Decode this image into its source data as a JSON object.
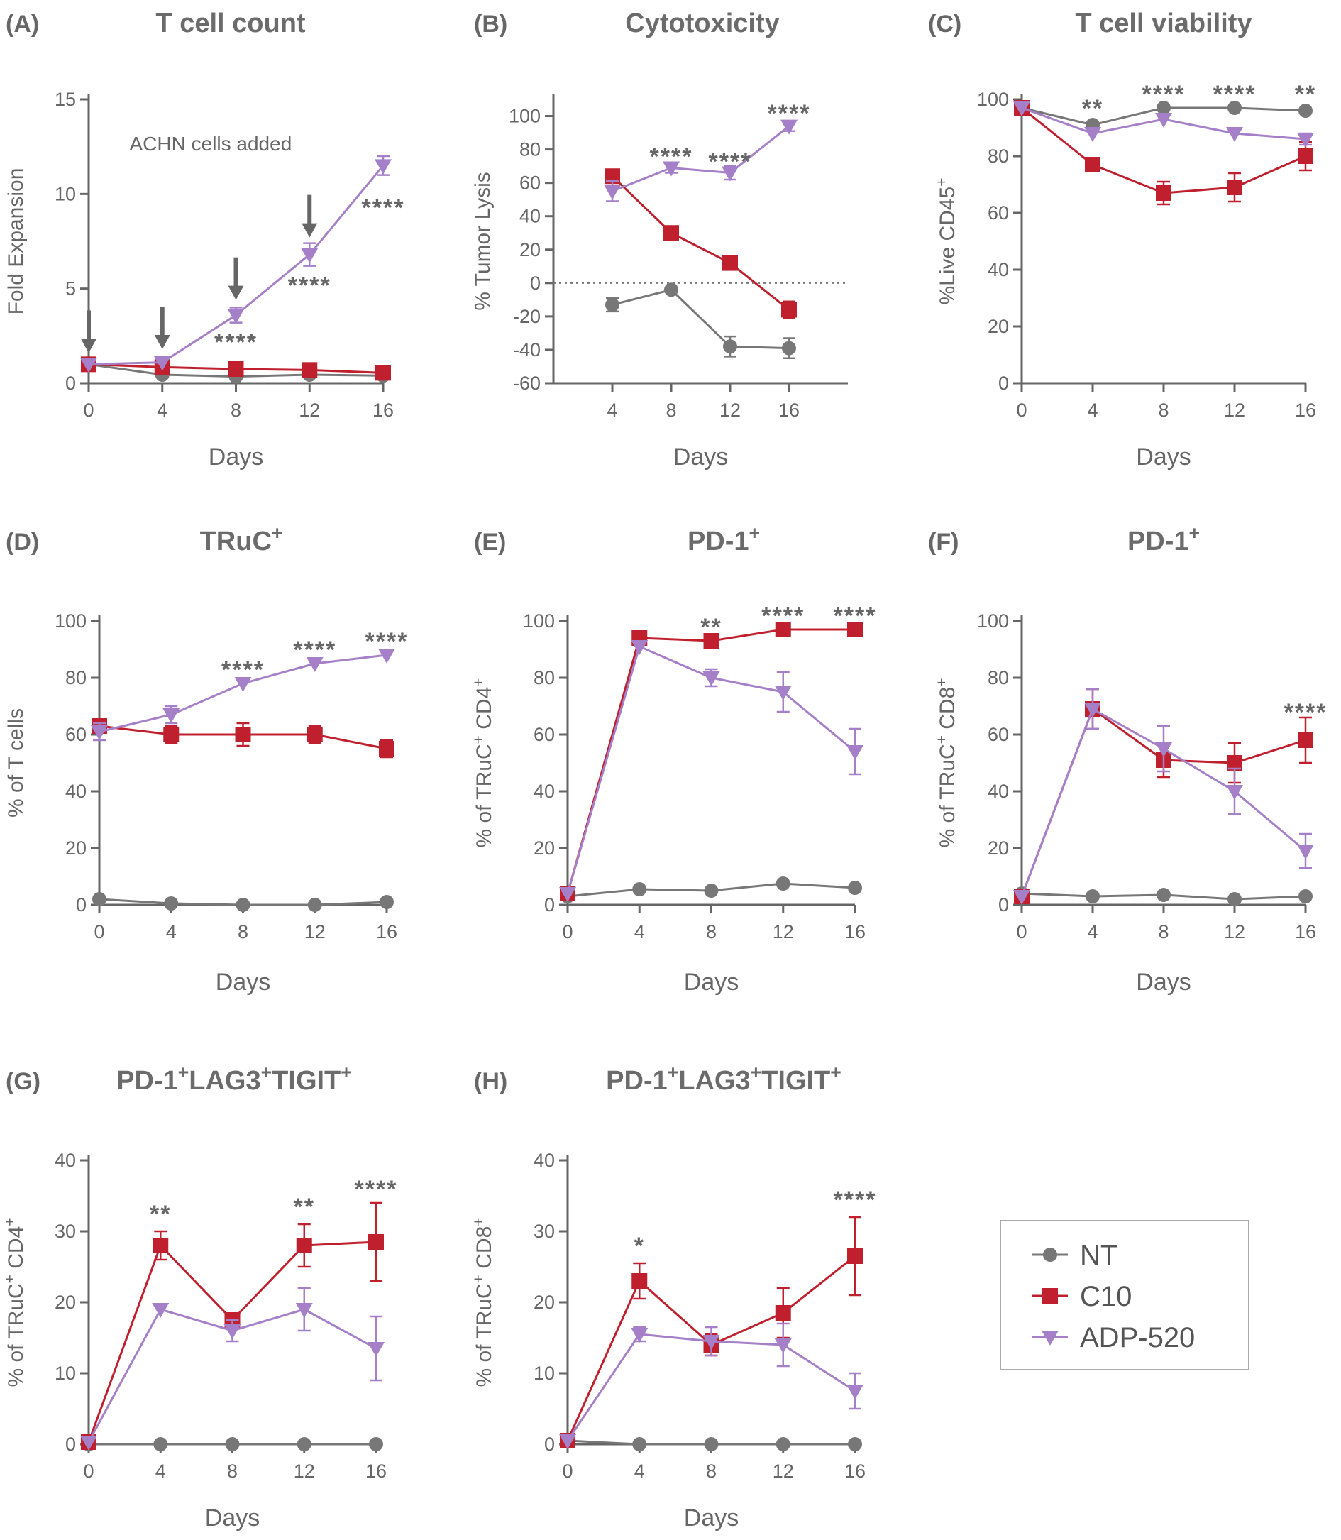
{
  "colors": {
    "NT": "#777777",
    "C10": "#c0202e",
    "ADP-520": "#a57fc8",
    "axis": "#666666"
  },
  "legend": {
    "items": [
      "NT",
      "C10",
      "ADP-520"
    ],
    "position": "bottom-right"
  },
  "chart_data": [
    {
      "letter": "(A)",
      "title": "T cell count",
      "titleSup": "",
      "type": "line",
      "xlabel": "Days",
      "ylabel": "Fold Expansion",
      "ylabelSup": "",
      "xticks": [
        0,
        4,
        8,
        12,
        16
      ],
      "yticks": [
        0,
        5,
        10,
        15
      ],
      "ylim": [
        0,
        15
      ],
      "annotation": {
        "text": "ACHN cells added",
        "arrows_at_days": [
          0,
          4,
          8,
          12
        ]
      },
      "series": [
        {
          "name": "NT",
          "x": [
            0,
            4,
            8,
            12,
            16
          ],
          "y": [
            1.0,
            0.45,
            0.35,
            0.45,
            0.4
          ],
          "err": [
            0,
            0,
            0,
            0,
            0
          ]
        },
        {
          "name": "C10",
          "x": [
            0,
            4,
            8,
            12,
            16
          ],
          "y": [
            1.0,
            0.85,
            0.75,
            0.7,
            0.55
          ],
          "err": [
            0,
            0,
            0,
            0,
            0
          ]
        },
        {
          "name": "ADP-520",
          "x": [
            0,
            4,
            8,
            12,
            16
          ],
          "y": [
            1.0,
            1.1,
            3.6,
            6.8,
            11.5
          ],
          "err": [
            0,
            0,
            0.4,
            0.6,
            0.5
          ]
        }
      ],
      "significance": [
        {
          "x": 8,
          "y": 2.2,
          "text": "****"
        },
        {
          "x": 12,
          "y": 5.2,
          "text": "****"
        },
        {
          "x": 16,
          "y": 9.3,
          "text": "****"
        }
      ]
    },
    {
      "letter": "(B)",
      "title": "Cytotoxicity",
      "titleSup": "",
      "type": "line",
      "xlabel": "Days",
      "ylabel": "% Tumor Lysis",
      "ylabelSup": "",
      "xticks": [
        4,
        8,
        12,
        16
      ],
      "yticks": [
        -60,
        -40,
        -20,
        0,
        20,
        40,
        60,
        80,
        100
      ],
      "ylim": [
        -60,
        110
      ],
      "xlim": [
        0,
        20
      ],
      "zero_line": true,
      "series": [
        {
          "name": "NT",
          "x": [
            4,
            8,
            12,
            16
          ],
          "y": [
            -13,
            -4,
            -38,
            -39
          ],
          "err": [
            4,
            0,
            6,
            6
          ]
        },
        {
          "name": "C10",
          "x": [
            4,
            8,
            12,
            16
          ],
          "y": [
            64,
            30,
            12,
            -16
          ],
          "err": [
            0,
            0,
            0,
            5
          ]
        },
        {
          "name": "ADP-520",
          "x": [
            4,
            8,
            12,
            16
          ],
          "y": [
            55,
            69,
            66,
            94
          ],
          "err": [
            6,
            3,
            4,
            3
          ]
        }
      ],
      "significance": [
        {
          "x": 8,
          "y": 76,
          "text": "****"
        },
        {
          "x": 12,
          "y": 73,
          "text": "****"
        },
        {
          "x": 16,
          "y": 102,
          "text": "****"
        }
      ]
    },
    {
      "letter": "(C)",
      "title": "T cell viability",
      "titleSup": "",
      "type": "line",
      "xlabel": "Days",
      "ylabel": "%Live CD45",
      "ylabelSup": "+",
      "xticks": [
        0,
        4,
        8,
        12,
        16
      ],
      "yticks": [
        0,
        20,
        40,
        60,
        80,
        100
      ],
      "ylim": [
        0,
        100
      ],
      "series": [
        {
          "name": "NT",
          "x": [
            0,
            4,
            8,
            12,
            16
          ],
          "y": [
            97,
            91,
            97,
            97,
            96
          ],
          "err": [
            0,
            0,
            0,
            0,
            0
          ]
        },
        {
          "name": "C10",
          "x": [
            0,
            4,
            8,
            12,
            16
          ],
          "y": [
            97,
            77,
            67,
            69,
            80
          ],
          "err": [
            0,
            0,
            4,
            5,
            5
          ]
        },
        {
          "name": "ADP-520",
          "x": [
            0,
            4,
            8,
            12,
            16
          ],
          "y": [
            97,
            88,
            93,
            88,
            86
          ],
          "err": [
            0,
            0,
            0,
            0,
            2
          ]
        }
      ],
      "significance": [
        {
          "x": 4,
          "y": 97,
          "text": "**"
        },
        {
          "x": 8,
          "y": 102,
          "text": "****"
        },
        {
          "x": 12,
          "y": 102,
          "text": "****"
        },
        {
          "x": 16,
          "y": 102,
          "text": "**"
        }
      ]
    },
    {
      "letter": "(D)",
      "title": "TRuC",
      "titleSup": "+",
      "type": "line",
      "xlabel": "Days",
      "ylabel": "% of T cells",
      "ylabelSup": "",
      "xticks": [
        0,
        4,
        8,
        12,
        16
      ],
      "yticks": [
        0,
        20,
        40,
        60,
        80,
        100
      ],
      "ylim": [
        0,
        100
      ],
      "series": [
        {
          "name": "NT",
          "x": [
            0,
            4,
            8,
            12,
            16
          ],
          "y": [
            2,
            0.5,
            0,
            0,
            1
          ],
          "err": [
            0,
            0,
            0,
            0,
            0
          ]
        },
        {
          "name": "C10",
          "x": [
            0,
            4,
            8,
            12,
            16
          ],
          "y": [
            63,
            60,
            60,
            60,
            55
          ],
          "err": [
            0,
            3,
            4,
            3,
            3
          ]
        },
        {
          "name": "ADP-520",
          "x": [
            0,
            4,
            8,
            12,
            16
          ],
          "y": [
            61,
            67,
            78,
            85,
            88
          ],
          "err": [
            3,
            3,
            0,
            0,
            0
          ]
        }
      ],
      "significance": [
        {
          "x": 8,
          "y": 83,
          "text": "****"
        },
        {
          "x": 12,
          "y": 90,
          "text": "****"
        },
        {
          "x": 16,
          "y": 93,
          "text": "****"
        }
      ]
    },
    {
      "letter": "(E)",
      "title": "PD-1",
      "titleSup": "+",
      "type": "line",
      "xlabel": "Days",
      "ylabel": "% of TRuC+ CD4",
      "ylabelSup": "+",
      "xticks": [
        0,
        4,
        8,
        12,
        16
      ],
      "yticks": [
        0,
        20,
        40,
        60,
        80,
        100
      ],
      "ylim": [
        0,
        100
      ],
      "series": [
        {
          "name": "NT",
          "x": [
            0,
            4,
            8,
            12,
            16
          ],
          "y": [
            3,
            5.5,
            5,
            7.5,
            6
          ],
          "err": [
            0,
            0,
            0,
            0,
            0
          ]
        },
        {
          "name": "C10",
          "x": [
            0,
            4,
            8,
            12,
            16
          ],
          "y": [
            4,
            94,
            93,
            97,
            97
          ],
          "err": [
            0,
            0,
            0,
            0,
            0
          ]
        },
        {
          "name": "ADP-520",
          "x": [
            0,
            4,
            8,
            12,
            16
          ],
          "y": [
            4,
            91,
            80,
            75,
            54
          ],
          "err": [
            0,
            0,
            3,
            7,
            8
          ]
        }
      ],
      "significance": [
        {
          "x": 8,
          "y": 98,
          "text": "**"
        },
        {
          "x": 12,
          "y": 102,
          "text": "****"
        },
        {
          "x": 16,
          "y": 102,
          "text": "****"
        }
      ]
    },
    {
      "letter": "(F)",
      "title": "PD-1",
      "titleSup": "+",
      "type": "line",
      "xlabel": "Days",
      "ylabel": "% of TRuC+ CD8",
      "ylabelSup": "+",
      "xticks": [
        0,
        4,
        8,
        12,
        16
      ],
      "yticks": [
        0,
        20,
        40,
        60,
        80,
        100
      ],
      "ylim": [
        0,
        100
      ],
      "series": [
        {
          "name": "NT",
          "x": [
            0,
            4,
            8,
            12,
            16
          ],
          "y": [
            4,
            3,
            3.5,
            2,
            3
          ],
          "err": [
            0,
            0,
            0,
            0,
            0
          ]
        },
        {
          "name": "C10",
          "x": [
            0,
            4,
            8,
            12,
            16
          ],
          "y": [
            3,
            69,
            51,
            50,
            58
          ],
          "err": [
            0,
            7,
            6,
            7,
            8
          ]
        },
        {
          "name": "ADP-520",
          "x": [
            0,
            4,
            8,
            12,
            16
          ],
          "y": [
            3,
            69,
            55,
            40,
            19
          ],
          "err": [
            0,
            7,
            8,
            8,
            6
          ]
        }
      ],
      "significance": [
        {
          "x": 16,
          "y": 68,
          "text": "****"
        }
      ]
    },
    {
      "letter": "(G)",
      "title": "PD-1+LAG3+TIGIT",
      "titleSup": "+",
      "type": "line",
      "xlabel": "Days",
      "ylabel": "% of TRuC+ CD4",
      "ylabelSup": "+",
      "xticks": [
        0,
        4,
        8,
        12,
        16
      ],
      "yticks": [
        0,
        10,
        20,
        30,
        40
      ],
      "ylim": [
        0,
        40
      ],
      "series": [
        {
          "name": "NT",
          "x": [
            0,
            4,
            8,
            12,
            16
          ],
          "y": [
            0,
            0,
            0,
            0,
            0
          ],
          "err": [
            0,
            0,
            0,
            0,
            0
          ]
        },
        {
          "name": "C10",
          "x": [
            0,
            4,
            8,
            12,
            16
          ],
          "y": [
            0.3,
            28,
            17.5,
            28,
            28.5
          ],
          "err": [
            0,
            2,
            0,
            3,
            5.5
          ]
        },
        {
          "name": "ADP-520",
          "x": [
            0,
            4,
            8,
            12,
            16
          ],
          "y": [
            0.3,
            19,
            16,
            19,
            13.5
          ],
          "err": [
            0,
            0,
            1.5,
            3,
            4.5
          ]
        }
      ],
      "significance": [
        {
          "x": 4,
          "y": 32.5,
          "text": "**"
        },
        {
          "x": 12,
          "y": 33.5,
          "text": "**"
        },
        {
          "x": 16,
          "y": 36,
          "text": "****"
        }
      ]
    },
    {
      "letter": "(H)",
      "title": "PD-1+LAG3+TIGIT",
      "titleSup": "+",
      "type": "line",
      "xlabel": "Days",
      "ylabel": "% of TRuC+ CD8",
      "ylabelSup": "+",
      "xticks": [
        0,
        4,
        8,
        12,
        16
      ],
      "yticks": [
        0,
        10,
        20,
        30,
        40
      ],
      "ylim": [
        0,
        40
      ],
      "series": [
        {
          "name": "NT",
          "x": [
            0,
            4,
            8,
            12,
            16
          ],
          "y": [
            0.5,
            0,
            0,
            0,
            0
          ],
          "err": [
            0,
            0,
            0,
            0,
            0
          ]
        },
        {
          "name": "C10",
          "x": [
            0,
            4,
            8,
            12,
            16
          ],
          "y": [
            0.5,
            23,
            14,
            18.5,
            26.5
          ],
          "err": [
            0,
            2.5,
            1.5,
            3.5,
            5.5
          ]
        },
        {
          "name": "ADP-520",
          "x": [
            0,
            4,
            8,
            12,
            16
          ],
          "y": [
            0.5,
            15.5,
            14.5,
            14,
            7.5
          ],
          "err": [
            0,
            1,
            2,
            3,
            2.5
          ]
        }
      ],
      "significance": [
        {
          "x": 4,
          "y": 28,
          "text": "*"
        },
        {
          "x": 16,
          "y": 34.5,
          "text": "****"
        }
      ]
    }
  ]
}
